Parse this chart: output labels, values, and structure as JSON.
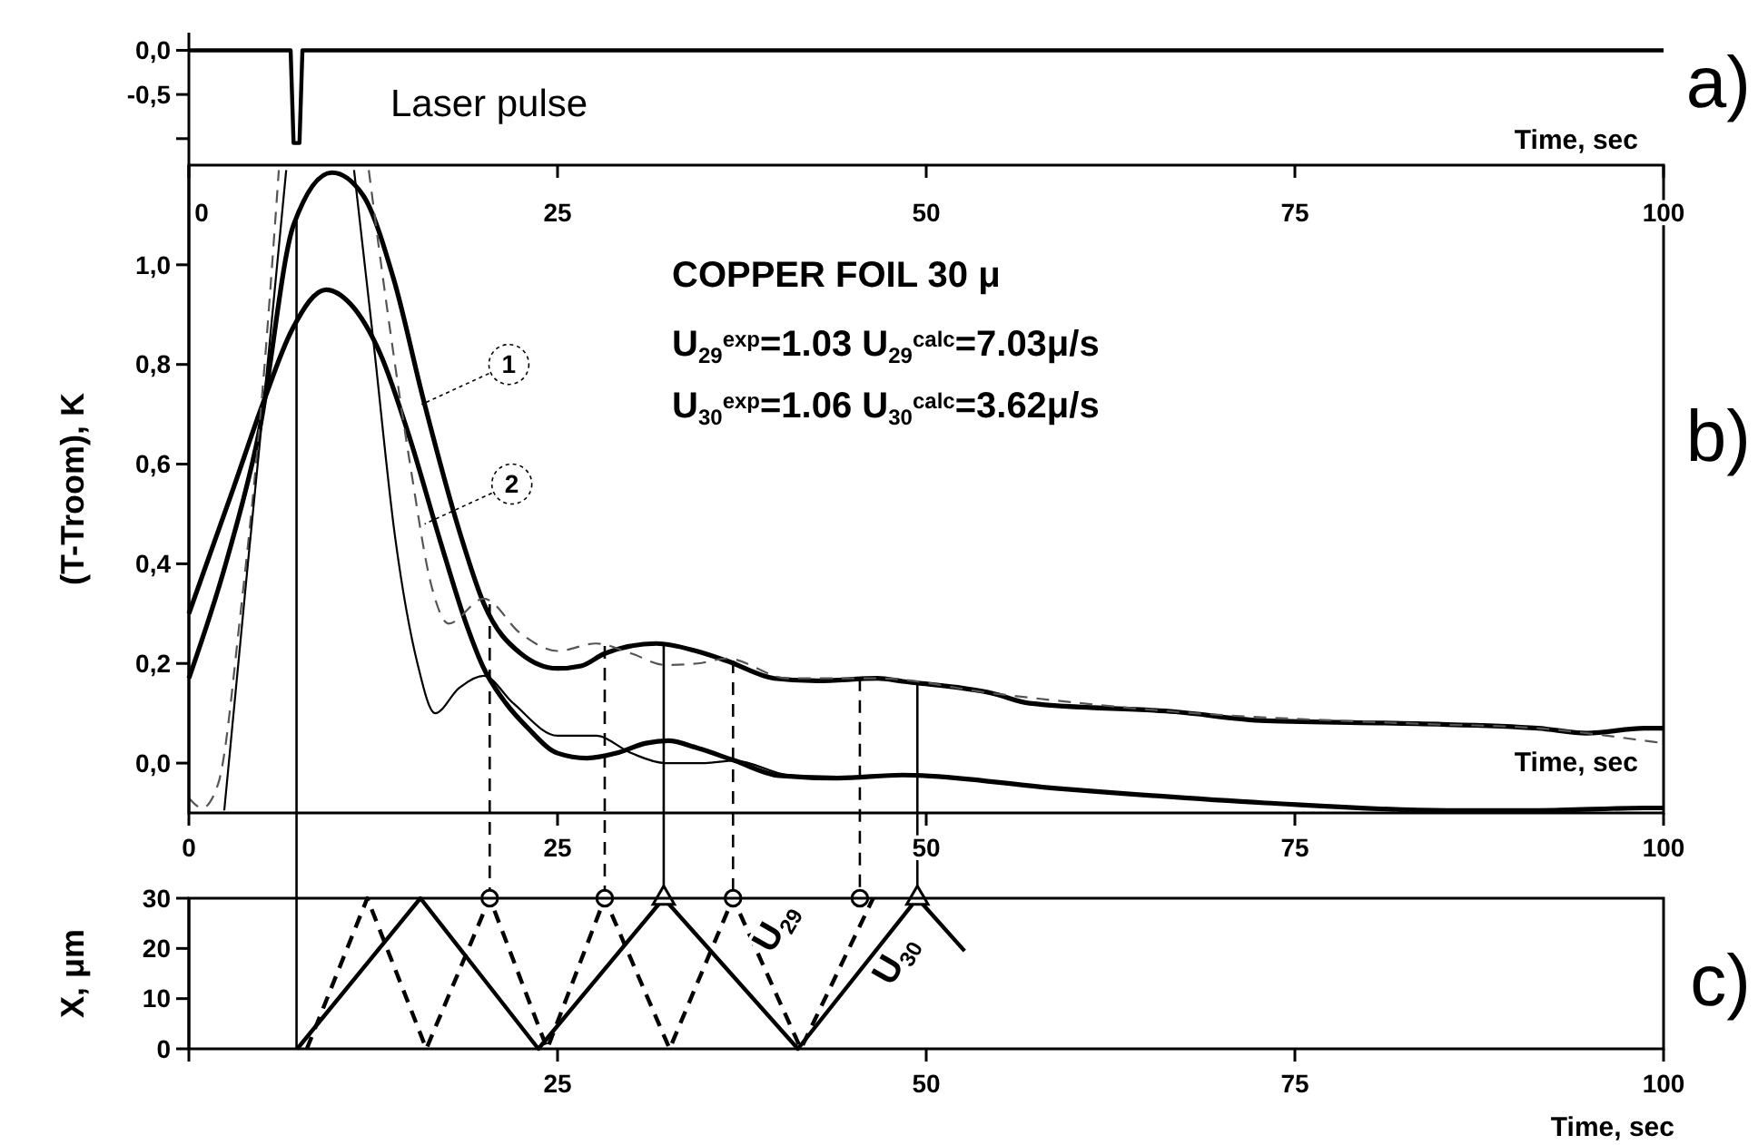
{
  "chart_data": [
    {
      "type": "line",
      "xlabel": "Time, sec",
      "xlim": [
        0,
        100
      ],
      "ylim": [
        -1.3,
        0.2
      ],
      "yticks": [
        {
          "value": 0,
          "label": "0,0"
        },
        {
          "value": -0.5,
          "label": "-0,5"
        },
        {
          "value": -1,
          "label": null
        }
      ],
      "tick_labels": "y",
      "series": [
        {
          "color": "#000000",
          "x": [
            0,
            6.9,
            7.1,
            7.5,
            7.7,
            100
          ],
          "values": [
            0,
            0,
            -1.05,
            -1.05,
            0,
            0
          ]
        }
      ],
      "annotations": [
        "Laser pulse",
        "a)"
      ]
    },
    {
      "type": "line",
      "xlabel": "Time, sec",
      "ylabel": "(T-Troom), K",
      "xlim": [
        0,
        100
      ],
      "xticks": [
        0,
        25,
        50,
        75,
        100
      ],
      "x2lim": [
        0,
        100
      ],
      "x2ticks": [
        0,
        25,
        50,
        75,
        100
      ],
      "ylim": [
        -0.1,
        1.2
      ],
      "yticks": [
        {
          "value": 0,
          "label": "0,0"
        },
        {
          "value": 0.2,
          "label": "0,2"
        },
        {
          "value": 0.4,
          "label": "0,4"
        },
        {
          "value": 0.6,
          "label": "0,6"
        },
        {
          "value": 0.8,
          "label": "0,8"
        },
        {
          "value": 1,
          "label": "1,0"
        }
      ],
      "series": [
        {
          "color": "#000000",
          "x": [
            0,
            2.5,
            4.8,
            7.1,
            9.7,
            11.8,
            13.9,
            15.9,
            18.4,
            20,
            22.5,
            25,
            26.6,
            28.2,
            31.7,
            34.4,
            36.5,
            39.7,
            42.6,
            46.7,
            48.4,
            54.5,
            57,
            66.9,
            73,
            83.3,
            91.5,
            94.8,
            98.7,
            100
          ],
          "values": [
            0.17,
            0.4,
            0.67,
            1.08,
            1.185,
            1.14,
            0.97,
            0.73,
            0.46,
            0.32,
            0.22,
            0.19,
            0.195,
            0.22,
            0.24,
            0.225,
            0.205,
            0.17,
            0.165,
            0.17,
            0.164,
            0.14,
            0.12,
            0.103,
            0.085,
            0.079,
            0.07,
            0.06,
            0.07,
            0.07
          ]
        },
        {
          "color": "#000000",
          "x": [
            0,
            3,
            5,
            7,
            9.3,
            11,
            13,
            15,
            17,
            18.8,
            20,
            21.5,
            23,
            25,
            27,
            29,
            31,
            32.5,
            34.5,
            37,
            40,
            44,
            48.4,
            58.6,
            73,
            85.3,
            91.5,
            98.7,
            100
          ],
          "values": [
            0.3,
            0.55,
            0.72,
            0.87,
            0.95,
            0.92,
            0.82,
            0.65,
            0.45,
            0.28,
            0.19,
            0.12,
            0.07,
            0.02,
            0.01,
            0.02,
            0.04,
            0.045,
            0.03,
            0.005,
            -0.025,
            -0.03,
            -0.024,
            -0.05,
            -0.08,
            -0.095,
            -0.095,
            -0.09,
            -0.09
          ]
        },
        {
          "color": "#555555",
          "line_style": "dashed",
          "x": [
            0,
            0.9,
            2,
            3.5,
            5,
            6.1,
            9,
            12.2,
            13.5,
            15,
            16.5,
            17.6,
            20,
            22.5,
            25,
            27.6,
            30,
            32.3,
            34.5,
            36.5,
            40.6,
            46.7,
            54.5,
            66.9,
            83.3,
            91.5,
            94.8,
            98.7,
            100
          ],
          "values": [
            -0.07,
            -0.09,
            -0.04,
            0.3,
            0.75,
            1.19,
            null,
            1.19,
            0.9,
            0.6,
            0.35,
            0.28,
            0.33,
            0.26,
            0.225,
            0.24,
            0.22,
            0.197,
            0.2,
            0.21,
            0.17,
            0.17,
            0.14,
            0.103,
            0.079,
            0.07,
            0.06,
            0.045,
            0.04
          ]
        },
        {
          "color": "#000000",
          "x": [
            2.4,
            4,
            5.5,
            6.6,
            9,
            11.2,
            12.5,
            14,
            15.5,
            16.7,
            18.3,
            20,
            22,
            25,
            27.6,
            30,
            32.3,
            35,
            37,
            40.6,
            44,
            48.4,
            58.6,
            73,
            85.3,
            91.5,
            98.7,
            100
          ],
          "values": [
            -0.095,
            0.4,
            0.85,
            1.19,
            null,
            1.19,
            0.85,
            0.45,
            0.2,
            0.1,
            0.15,
            0.175,
            0.12,
            0.055,
            0.055,
            0.02,
            0.0,
            0.0,
            0.005,
            -0.024,
            -0.03,
            -0.024,
            -0.05,
            -0.08,
            -0.095,
            -0.095,
            -0.09,
            -0.09
          ]
        }
      ],
      "ref_lines": [
        {
          "axis": "x",
          "value": 7.3,
          "line_style": "solid"
        },
        {
          "axis": "x",
          "value": 20.4,
          "line_style": "dashed"
        },
        {
          "axis": "x",
          "value": 28.2,
          "line_style": "dashed"
        },
        {
          "axis": "x",
          "value": 32.2,
          "line_style": "solid"
        },
        {
          "axis": "x",
          "value": 36.9,
          "line_style": "dashed"
        },
        {
          "axis": "x",
          "value": 45.5,
          "line_style": "dashed"
        },
        {
          "axis": "x",
          "value": 49.4,
          "line_style": "solid"
        }
      ],
      "annotations": [
        "COPPER FOIL 30 μ",
        "U$_{29}$$^{exp}$=1.03 U$_{29}$$^{calc}$=7.03μ/s",
        "U$_{30}$$^{exp}$=1.06 U$_{30}$$^{calc}$=3.62μ/s",
        "b)",
        {
          "text": "1",
          "x": 21.7,
          "y": 0.8
        },
        {
          "text": "2",
          "x": 21.9,
          "y": 0.56
        }
      ]
    },
    {
      "type": "line",
      "xlabel": "Time, sec",
      "ylabel": "X, μm",
      "xlim": [
        0,
        100
      ],
      "xticks": [
        {
          "value": 0,
          "label": null
        },
        25,
        50,
        75,
        100
      ],
      "ylim": [
        0,
        30
      ],
      "yticks": [
        0,
        10,
        20,
        30
      ],
      "series": [
        {
          "color": "#000000",
          "x": [
            7.35,
            15.7,
            23.7,
            32.2,
            41.3,
            49.4,
            52.6
          ],
          "values": [
            0,
            30,
            0,
            30,
            0,
            30,
            19.5
          ]
        },
        {
          "color": "#000000",
          "line_style": "dashed",
          "x": [
            8,
            12.1,
            16.1,
            20.4,
            24.3,
            28.2,
            32.6,
            36.9,
            41.5,
            46.4
          ],
          "values": [
            0,
            30,
            0,
            30,
            0,
            30,
            0,
            30,
            0,
            30
          ]
        },
        {
          "type": "scatter",
          "marker": "circle",
          "color": "#000000",
          "x": [
            20.4,
            28.2,
            36.9,
            45.5
          ],
          "values": [
            30,
            30,
            30,
            30
          ]
        },
        {
          "type": "scatter",
          "marker": "triangle",
          "color": "#000000",
          "x": [
            32.2,
            49.4
          ],
          "values": [
            30,
            30
          ]
        }
      ],
      "ref_lines": [
        {
          "axis": "x",
          "value": 7.3,
          "line_style": "solid"
        }
      ],
      "annotations": [
        "U$_{29}$",
        "U$_{30}$",
        "c)"
      ]
    }
  ]
}
